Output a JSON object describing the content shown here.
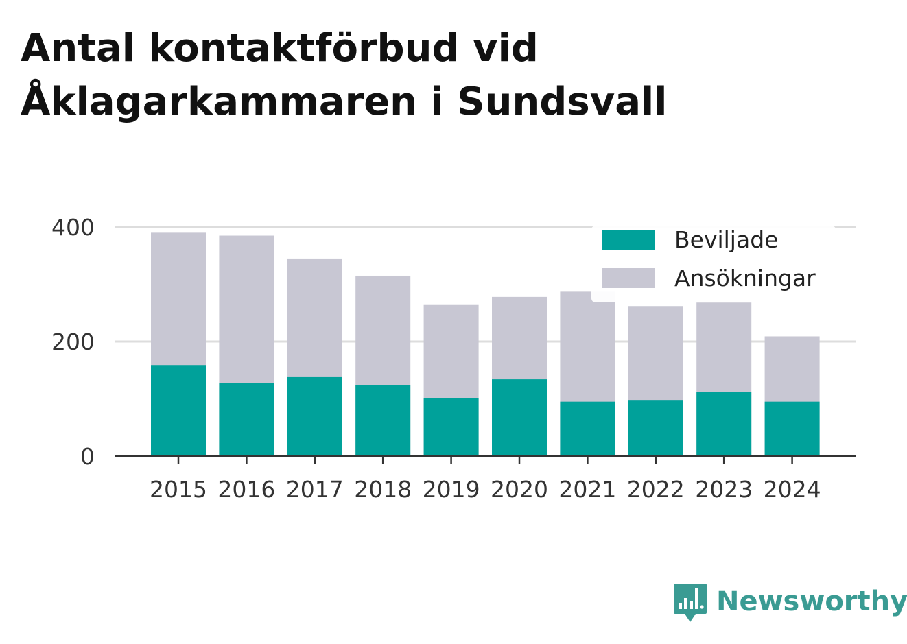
{
  "title_lines": [
    "Antal kontaktförbud vid",
    "Åklagarkammaren i Sundsvall"
  ],
  "brand": {
    "name": "Newsworthy",
    "icon": "newsworthy-logo-icon",
    "color": "#3a9b93"
  },
  "chart_data": {
    "type": "bar",
    "stacked": false,
    "overlapping": true,
    "title": "Antal kontaktförbud vid Åklagarkammaren i Sundsvall",
    "xlabel": "",
    "ylabel": "",
    "categories": [
      "2015",
      "2016",
      "2017",
      "2018",
      "2019",
      "2020",
      "2021",
      "2022",
      "2023",
      "2024"
    ],
    "series": [
      {
        "name": "Ansökningar",
        "color": "#c8c7d3",
        "values": [
          390,
          385,
          345,
          315,
          265,
          278,
          287,
          262,
          268,
          209
        ]
      },
      {
        "name": "Beviljade",
        "color": "#00a19a",
        "values": [
          159,
          128,
          139,
          124,
          101,
          134,
          95,
          98,
          112,
          95
        ]
      }
    ],
    "legend": {
      "position": "top-right",
      "order": [
        "Beviljade",
        "Ansökningar"
      ]
    },
    "ylim": [
      0,
      400
    ],
    "yticks": [
      "0",
      "200",
      "400"
    ],
    "grid": true,
    "grid_color": "#dddddd",
    "axis_color": "#333333"
  }
}
